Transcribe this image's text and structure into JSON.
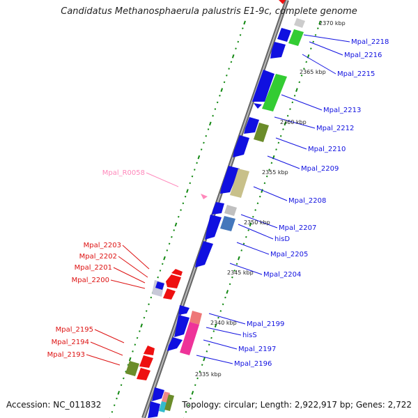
{
  "title": "Candidatus Methanosphaerula palustris E1-9c, complete genome",
  "footer": {
    "accession": "Accession: NC_011832",
    "topology": "Topology: circular; Length: 2,922,917 bp; Genes: 2,722"
  },
  "colors": {
    "forward": "#1010e0",
    "reverse": "#ee1010",
    "rna": "#ff88bb",
    "backbone": "#888888",
    "tick": "#118811",
    "green_cog": "#33cc33",
    "olive_cog": "#6b8c2a",
    "khaki_cog": "#c8c08a",
    "pink_cog": "#ee3399",
    "steel_cog": "#4477bb",
    "grey_cog": "#c0c0c0"
  },
  "kbp_labels": [
    "2370 kbp",
    "2365 kbp",
    "2360 kbp",
    "2355 kbp",
    "2350 kbp",
    "2345 kbp",
    "2340 kbp",
    "2335 kbp"
  ],
  "genes_right": [
    {
      "name": "Mpal_2218",
      "color": "#1010e0"
    },
    {
      "name": "Mpal_2216",
      "color": "#1010e0"
    },
    {
      "name": "Mpal_2215",
      "color": "#1010e0"
    },
    {
      "name": "Mpal_2213",
      "color": "#1010e0"
    },
    {
      "name": "Mpal_2212",
      "color": "#1010e0"
    },
    {
      "name": "Mpal_2210",
      "color": "#1010e0"
    },
    {
      "name": "Mpal_2209",
      "color": "#1010e0"
    },
    {
      "name": "Mpal_2208",
      "color": "#1010e0"
    },
    {
      "name": "Mpal_2207",
      "color": "#1010e0"
    },
    {
      "name": "hisD",
      "color": "#1010e0"
    },
    {
      "name": "Mpal_2205",
      "color": "#1010e0"
    },
    {
      "name": "Mpal_2204",
      "color": "#1010e0"
    },
    {
      "name": "Mpal_2199",
      "color": "#1010e0"
    },
    {
      "name": "hisS",
      "color": "#1010e0"
    },
    {
      "name": "Mpal_2197",
      "color": "#1010e0"
    },
    {
      "name": "Mpal_2196",
      "color": "#1010e0"
    }
  ],
  "genes_left": [
    {
      "name": "Mpal_R0058",
      "color": "#ff88bb"
    },
    {
      "name": "Mpal_2203",
      "color": "#dd1111"
    },
    {
      "name": "Mpal_2202",
      "color": "#dd1111"
    },
    {
      "name": "Mpal_2201",
      "color": "#dd1111"
    },
    {
      "name": "Mpal_2200",
      "color": "#dd1111"
    },
    {
      "name": "Mpal_2195",
      "color": "#dd1111"
    },
    {
      "name": "Mpal_2194",
      "color": "#dd1111"
    },
    {
      "name": "Mpal_2193",
      "color": "#dd1111"
    }
  ]
}
